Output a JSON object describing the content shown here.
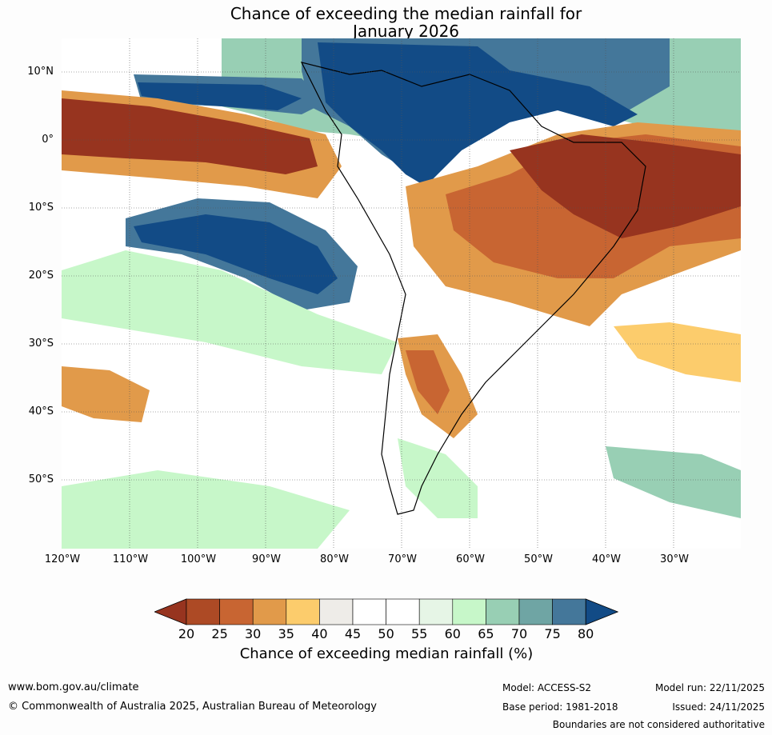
{
  "title": {
    "line1": "Chance of exceeding the median rainfall for",
    "line2": "January 2026"
  },
  "lat_labels": [
    "10°N",
    "0°",
    "10°S",
    "20°S",
    "30°S",
    "40°S",
    "50°S"
  ],
  "lon_labels": [
    "120°W",
    "110°W",
    "100°W",
    "90°W",
    "80°W",
    "70°W",
    "60°W",
    "50°W",
    "40°W",
    "30°W"
  ],
  "colorbar": {
    "ticks": [
      "20",
      "25",
      "30",
      "35",
      "40",
      "45",
      "50",
      "55",
      "60",
      "65",
      "70",
      "75",
      "80"
    ],
    "label": "Chance of exceeding median rainfall (%)",
    "colors": [
      "#97341f",
      "#ad4a25",
      "#c86532",
      "#e19a4a",
      "#fccc6c",
      "#eeece8",
      "#ffffff",
      "#ffffff",
      "#e6f5e6",
      "#c7f7c9",
      "#98cfb4",
      "#6fa5a4",
      "#44779a",
      "#124b86"
    ]
  },
  "footer": {
    "website": "www.bom.gov.au/climate",
    "copyright": "© Commonwealth of Australia 2025, Australian Bureau of Meteorology",
    "model": "Model: ACCESS-S2",
    "base_period": "Base period: 1981-2018",
    "model_run": "Model run: 22/11/2025",
    "issued": "Issued: 24/11/2025",
    "disclaimer": "Boundaries are not considered authoritative"
  }
}
